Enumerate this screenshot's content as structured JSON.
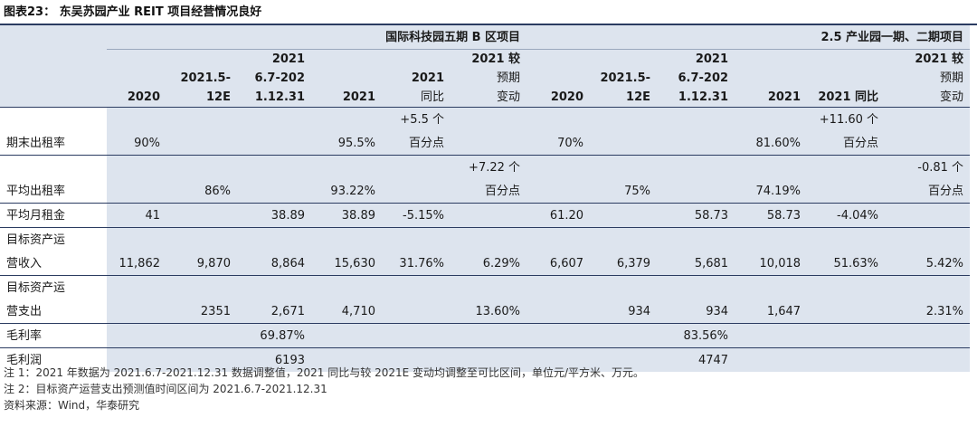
{
  "title": "图表23：  东吴苏园产业 REIT 项目经营情况良好",
  "groups": [
    "国际科技园五期 B 区项目",
    "2.5 产业园一期、二期项目"
  ],
  "header": {
    "row1": [
      "",
      "",
      "",
      "2021",
      "",
      "",
      "2021 较",
      "",
      "",
      "2021",
      "",
      "",
      "2021 较"
    ],
    "row2": [
      "",
      "",
      "2021.5-",
      "6.7-202",
      "",
      "2021",
      "预期",
      "",
      "2021.5-",
      "6.7-202",
      "",
      "",
      "预期"
    ],
    "row3": [
      "",
      "2020",
      "12E",
      "1.12.31",
      "2021",
      "同比",
      "变动",
      "2020",
      "12E",
      "1.12.31",
      "2021",
      "2021 同比",
      "变动"
    ]
  },
  "rows": [
    {
      "top": [
        "",
        "",
        "",
        "",
        "",
        "+5.5 个",
        "",
        "",
        "",
        "",
        "",
        "+11.60 个",
        ""
      ],
      "bottom": [
        "期末出租率",
        "90%",
        "",
        "",
        "95.5%",
        "百分点",
        "",
        "70%",
        "",
        "",
        "81.60%",
        "百分点",
        ""
      ]
    },
    {
      "top": [
        "",
        "",
        "",
        "",
        "",
        "",
        "+7.22 个",
        "",
        "",
        "",
        "",
        "",
        "-0.81 个"
      ],
      "bottom": [
        "平均出租率",
        "",
        "86%",
        "",
        "93.22%",
        "",
        "百分点",
        "",
        "75%",
        "",
        "74.19%",
        "",
        "百分点"
      ]
    },
    {
      "single": [
        "平均月租金",
        "41",
        "",
        "38.89",
        "38.89",
        "-5.15%",
        "",
        "61.20",
        "",
        "58.73",
        "58.73",
        "-4.04%",
        ""
      ]
    },
    {
      "top": [
        "目标资产运",
        "",
        "",
        "",
        "",
        "",
        "",
        "",
        "",
        "",
        "",
        "",
        ""
      ],
      "bottom": [
        "营收入",
        "11,862",
        "9,870",
        "8,864",
        "15,630",
        "31.76%",
        "6.29%",
        "6,607",
        "6,379",
        "5,681",
        "10,018",
        "51.63%",
        "5.42%"
      ]
    },
    {
      "top": [
        "目标资产运",
        "",
        "",
        "",
        "",
        "",
        "",
        "",
        "",
        "",
        "",
        "",
        ""
      ],
      "bottom": [
        "营支出",
        "",
        "2351",
        "2,671",
        "4,710",
        "",
        "13.60%",
        "",
        "934",
        "934",
        "1,647",
        "",
        "2.31%"
      ]
    },
    {
      "single": [
        "毛利率",
        "",
        "",
        "69.87%",
        "",
        "",
        "",
        "",
        "",
        "83.56%",
        "",
        "",
        ""
      ]
    },
    {
      "single": [
        "毛利润",
        "",
        "",
        "6193",
        "",
        "",
        "",
        "",
        "",
        "4747",
        "",
        "",
        ""
      ]
    }
  ],
  "notes": [
    "注 1：2021 年数据为 2021.6.7-2021.12.31 数据调整值，2021 同比与较 2021E 变动均调整至可比区间，单位元/平方米、万元。",
    "注 2：目标资产运营支出预测值时间区间为 2021.6.7-2021.12.31",
    "资料来源：Wind，华泰研究"
  ]
}
